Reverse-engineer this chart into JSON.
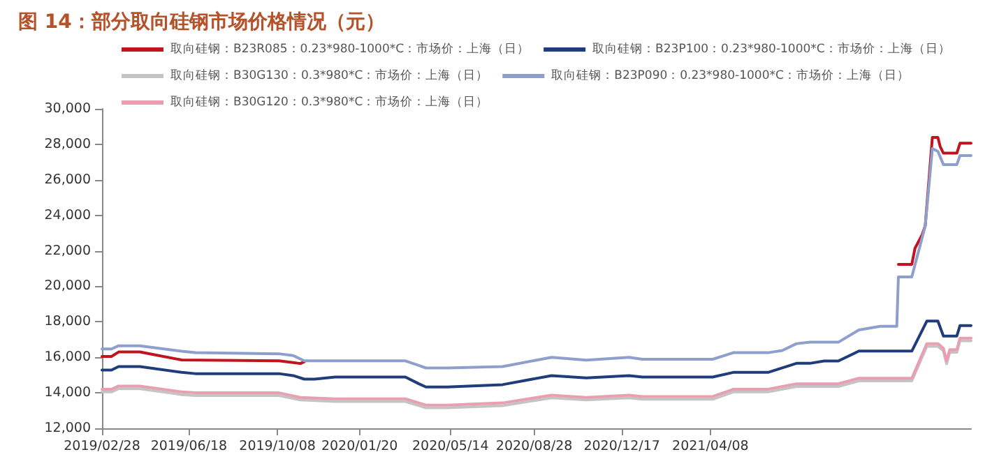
{
  "chart_data": {
    "type": "line",
    "title": "图 14：部分取向硅钢市场价格情况（元）",
    "ylim": [
      12000,
      30000
    ],
    "yticks": [
      {
        "value": 12000,
        "label": "12,000"
      },
      {
        "value": 14000,
        "label": "14,000"
      },
      {
        "value": 16000,
        "label": "16,000"
      },
      {
        "value": 18000,
        "label": "18,000"
      },
      {
        "value": 20000,
        "label": "20,000"
      },
      {
        "value": 22000,
        "label": "22,000"
      },
      {
        "value": 24000,
        "label": "24,000"
      },
      {
        "value": 26000,
        "label": "26,000"
      },
      {
        "value": 28000,
        "label": "28,000"
      },
      {
        "value": 30000,
        "label": "30,000"
      }
    ],
    "xlim": [
      "2019-02-28",
      "2022-03-04"
    ],
    "xticks": [
      {
        "value": "2019-02-28",
        "label": "2019/02/28"
      },
      {
        "value": "2019-06-18",
        "label": "2019/06/18"
      },
      {
        "value": "2019-10-08",
        "label": "2019/10/08"
      },
      {
        "value": "2020-01-20",
        "label": "2020/01/20"
      },
      {
        "value": "2020-05-14",
        "label": "2020/05/14"
      },
      {
        "value": "2020-08-28",
        "label": "2020/08/28"
      },
      {
        "value": "2020-12-17",
        "label": "2020/12/17"
      },
      {
        "value": "2021-04-08",
        "label": "2021/04/08"
      }
    ],
    "grid": false,
    "legend": "top",
    "marker": "none",
    "line_style": "solid",
    "series": [
      {
        "name": "取向硅钢：B23R085：0.23*980-1000*C：市场价：上海（日）",
        "color": "#c0141e",
        "x": [
          "2019-02-28",
          "2019-03-12",
          "2019-03-21",
          "2019-04-17",
          "2019-06-09",
          "2019-10-10",
          "2019-10-28",
          "2019-11-06",
          "2019-11-11",
          "2019-11-24",
          "2021-12-02",
          "2021-12-19",
          "2021-12-23",
          "2022-01-01",
          "2022-01-05",
          "2022-01-14",
          "2022-01-21",
          "2022-01-24",
          "2022-01-28",
          "2022-02-14",
          "2022-02-18",
          "2022-03-04"
        ],
        "values": [
          16050,
          16050,
          16300,
          16300,
          15850,
          15800,
          15700,
          15650,
          15750,
          null,
          21240,
          21240,
          22140,
          22900,
          23410,
          28390,
          28390,
          27860,
          27500,
          27500,
          28060,
          28060
        ]
      },
      {
        "name": "取向硅钢：B23P100：0.23*980-1000*C：市场价：上海（日）",
        "color": "#1f3d7a",
        "x": [
          "2019-02-28",
          "2019-03-12",
          "2019-03-21",
          "2019-04-17",
          "2019-06-09",
          "2019-06-26",
          "2019-10-10",
          "2019-10-28",
          "2019-11-11",
          "2019-11-24",
          "2019-12-20",
          "2020-03-18",
          "2020-04-04",
          "2020-04-13",
          "2020-05-10",
          "2020-07-19",
          "2020-09-19",
          "2020-11-02",
          "2020-12-26",
          "2021-01-12",
          "2021-04-11",
          "2021-05-07",
          "2021-06-20",
          "2021-07-26",
          "2021-08-12",
          "2021-08-30",
          "2021-09-17",
          "2021-10-13",
          "2021-12-19",
          "2022-01-07",
          "2022-01-21",
          "2022-01-28",
          "2022-02-14",
          "2022-02-18",
          "2022-03-04"
        ],
        "values": [
          15280,
          15280,
          15480,
          15480,
          15150,
          15080,
          15080,
          14970,
          14770,
          14770,
          14890,
          14890,
          14510,
          14330,
          14330,
          14460,
          14970,
          14840,
          14970,
          14890,
          14890,
          15150,
          15150,
          15660,
          15660,
          15790,
          15790,
          16350,
          16350,
          18040,
          18040,
          17200,
          17200,
          17790,
          17790
        ]
      },
      {
        "name": "取向硅钢：B30G130：0.3*980*C：市场价：上海（日）",
        "color": "#c4c4c4",
        "x": [
          "2019-02-28",
          "2019-03-12",
          "2019-03-21",
          "2019-04-17",
          "2019-06-09",
          "2019-06-26",
          "2019-10-10",
          "2019-11-06",
          "2019-12-20",
          "2020-03-18",
          "2020-04-04",
          "2020-04-13",
          "2020-05-10",
          "2020-07-19",
          "2020-09-19",
          "2020-11-02",
          "2020-12-26",
          "2021-01-12",
          "2021-04-11",
          "2021-05-07",
          "2021-06-20",
          "2021-07-26",
          "2021-09-17",
          "2021-10-13",
          "2021-12-19",
          "2022-01-07",
          "2022-01-21",
          "2022-01-28",
          "2022-02-01",
          "2022-02-05",
          "2022-02-14",
          "2022-02-18",
          "2022-03-04"
        ],
        "values": [
          14050,
          14050,
          14230,
          14230,
          13900,
          13850,
          13850,
          13600,
          13510,
          13510,
          13280,
          13160,
          13160,
          13280,
          13720,
          13600,
          13720,
          13640,
          13640,
          14050,
          14050,
          14360,
          14360,
          14670,
          14670,
          16620,
          16620,
          16360,
          15640,
          16280,
          16280,
          16930,
          16930
        ]
      },
      {
        "name": "取向硅钢：B23P090：0.23*980-1000*C：市场价：上海（日）",
        "color": "#8f9fcc",
        "x": [
          "2019-02-28",
          "2019-03-12",
          "2019-03-21",
          "2019-04-17",
          "2019-06-09",
          "2019-06-26",
          "2019-10-10",
          "2019-10-28",
          "2019-11-11",
          "2020-03-18",
          "2020-04-04",
          "2020-04-13",
          "2020-05-10",
          "2020-07-19",
          "2020-09-19",
          "2020-11-02",
          "2020-12-26",
          "2021-01-12",
          "2021-04-11",
          "2021-05-07",
          "2021-06-20",
          "2021-07-08",
          "2021-07-26",
          "2021-08-12",
          "2021-09-17",
          "2021-10-13",
          "2021-11-09",
          "2021-11-30",
          "2021-12-02",
          "2021-12-19",
          "2022-01-05",
          "2022-01-14",
          "2022-01-21",
          "2022-01-28",
          "2022-02-14",
          "2022-02-18",
          "2022-03-04"
        ],
        "values": [
          16470,
          16470,
          16650,
          16650,
          16340,
          16260,
          16200,
          16100,
          15800,
          15800,
          15540,
          15400,
          15400,
          15480,
          16000,
          15840,
          16000,
          15890,
          15890,
          16260,
          16260,
          16380,
          16770,
          16850,
          16850,
          17540,
          17750,
          17750,
          20530,
          20530,
          23410,
          27760,
          27600,
          26860,
          26860,
          27370,
          27370
        ]
      },
      {
        "name": "取向硅钢：B30G120：0.3*980*C：市场价：上海（日）",
        "color": "#e8a0b0",
        "x": [
          "2019-02-28",
          "2019-03-12",
          "2019-03-21",
          "2019-04-17",
          "2019-06-09",
          "2019-06-26",
          "2019-10-10",
          "2019-11-06",
          "2019-12-20",
          "2020-03-18",
          "2020-04-04",
          "2020-04-13",
          "2020-05-10",
          "2020-07-19",
          "2020-09-19",
          "2020-11-02",
          "2020-12-26",
          "2021-01-12",
          "2021-04-11",
          "2021-05-07",
          "2021-06-20",
          "2021-07-26",
          "2021-09-17",
          "2021-10-13",
          "2021-12-19",
          "2022-01-07",
          "2022-01-21",
          "2022-01-28",
          "2022-02-01",
          "2022-02-05",
          "2022-02-14",
          "2022-02-18",
          "2022-03-04"
        ],
        "values": [
          14200,
          14200,
          14380,
          14380,
          14050,
          14000,
          14000,
          13740,
          13660,
          13660,
          13430,
          13310,
          13310,
          13430,
          13870,
          13740,
          13870,
          13790,
          13790,
          14200,
          14200,
          14510,
          14510,
          14820,
          14820,
          16770,
          16770,
          16510,
          15790,
          16430,
          16430,
          17080,
          17080
        ]
      }
    ]
  }
}
